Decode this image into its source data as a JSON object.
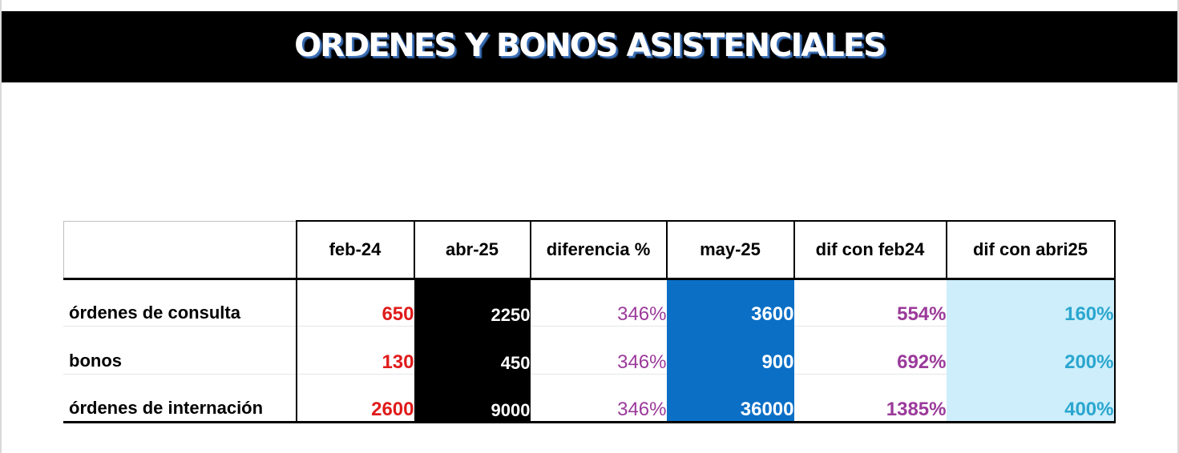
{
  "title": "ORDENES Y BONOS ASISTENCIALES",
  "table": {
    "headers": [
      "",
      "feb-24",
      "abr-25",
      "diferencia %",
      "may-25",
      "dif con feb24",
      "dif con abri25"
    ],
    "rows": [
      {
        "label": "órdenes de consulta",
        "feb24": "650",
        "abr25": "2250",
        "diferencia": "346%",
        "may25": "3600",
        "dif_feb24": "554%",
        "dif_abr25": "160%"
      },
      {
        "label": "bonos",
        "feb24": "130",
        "abr25": "450",
        "diferencia": "346%",
        "may25": "900",
        "dif_feb24": "692%",
        "dif_abr25": "200%"
      },
      {
        "label": "órdenes de internación",
        "feb24": "2600",
        "abr25": "9000",
        "diferencia": "346%",
        "may25": "36000",
        "dif_feb24": "1385%",
        "dif_abr25": "400%"
      }
    ]
  },
  "colors": {
    "feb24_text": "#e01b1b",
    "abr25_fill": "#000000",
    "may25_fill": "#0b6fc6",
    "dif_text": "#9b3a9a",
    "dif_abr25_fill": "#cdeefa",
    "dif_abr25_text": "#2aa6cf"
  }
}
